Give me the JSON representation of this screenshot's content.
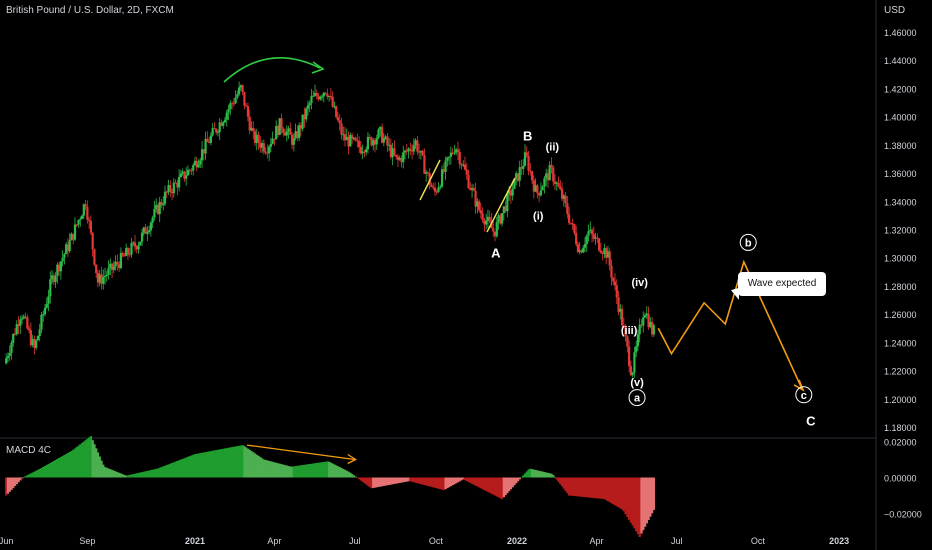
{
  "header": {
    "title": "British Pound / U.S. Dollar, 2D, FXCM",
    "currency": "USD",
    "macd_label": "MACD 4C"
  },
  "colors": {
    "up": "#26a69a",
    "candle_up": "#2ebd4a",
    "candle_down": "#e53935",
    "macd_green": "#1f9d2f",
    "macd_light_green": "#4caf50",
    "macd_red": "#b71c1c",
    "projection": "#f39c12",
    "arc": "#2ecc40",
    "trendline": "#f1e05a"
  },
  "chart_data": [
    {
      "type": "candlestick",
      "title": "British Pound / U.S. Dollar, 2D, FXCM",
      "ylabel": "USD",
      "ylim": [
        1.17,
        1.47
      ],
      "yticks": [
        "1.46000",
        "1.44000",
        "1.42000",
        "1.40000",
        "1.38000",
        "1.36000",
        "1.34000",
        "1.32000",
        "1.30000",
        "1.28000",
        "1.26000",
        "1.24000",
        "1.22000",
        "1.20000",
        "1.18000"
      ],
      "xticks": [
        "Jun",
        "Sep",
        "2021",
        "Apr",
        "Jul",
        "Oct",
        "2022",
        "Apr",
        "Jul",
        "Oct",
        "2023"
      ],
      "price_path": [
        [
          "2020-06-01",
          1.225
        ],
        [
          "2020-06-20",
          1.262
        ],
        [
          "2020-07-05",
          1.235
        ],
        [
          "2020-07-25",
          1.285
        ],
        [
          "2020-08-15",
          1.312
        ],
        [
          "2020-09-01",
          1.34
        ],
        [
          "2020-09-15",
          1.283
        ],
        [
          "2020-10-01",
          1.292
        ],
        [
          "2020-11-01",
          1.312
        ],
        [
          "2020-12-01",
          1.345
        ],
        [
          "2021-01-01",
          1.365
        ],
        [
          "2021-02-24",
          1.42
        ],
        [
          "2021-03-10",
          1.385
        ],
        [
          "2021-03-25",
          1.378
        ],
        [
          "2021-04-10",
          1.395
        ],
        [
          "2021-04-25",
          1.382
        ],
        [
          "2021-05-15",
          1.412
        ],
        [
          "2021-06-01",
          1.42
        ],
        [
          "2021-06-20",
          1.385
        ],
        [
          "2021-07-10",
          1.378
        ],
        [
          "2021-08-01",
          1.388
        ],
        [
          "2021-08-20",
          1.368
        ],
        [
          "2021-09-10",
          1.382
        ],
        [
          "2021-10-01",
          1.345
        ],
        [
          "2021-10-25",
          1.38
        ],
        [
          "2021-11-20",
          1.335
        ],
        [
          "2021-12-08",
          1.318
        ],
        [
          "2022-01-13",
          1.372
        ],
        [
          "2022-01-25",
          1.345
        ],
        [
          "2022-02-10",
          1.362
        ],
        [
          "2022-02-25",
          1.34
        ],
        [
          "2022-03-15",
          1.305
        ],
        [
          "2022-03-25",
          1.318
        ],
        [
          "2022-04-15",
          1.303
        ],
        [
          "2022-05-01",
          1.258
        ],
        [
          "2022-05-13",
          1.218
        ],
        [
          "2022-05-27",
          1.265
        ],
        [
          "2022-06-05",
          1.248
        ]
      ],
      "projection": [
        [
          "2022-06-10",
          1.25
        ],
        [
          "2022-06-25",
          1.232
        ],
        [
          "2022-08-01",
          1.268
        ],
        [
          "2022-08-25",
          1.253
        ],
        [
          "2022-09-15",
          1.297
        ],
        [
          "2022-11-20",
          1.207
        ]
      ],
      "annotations": [
        {
          "text": "A",
          "date": "2021-12-08",
          "price": 1.3
        },
        {
          "text": "B",
          "date": "2022-01-13",
          "price": 1.383
        },
        {
          "text": "(i)",
          "date": "2022-01-25",
          "price": 1.327
        },
        {
          "text": "(ii)",
          "date": "2022-02-10",
          "price": 1.376
        },
        {
          "text": "(iii)",
          "date": "2022-05-08",
          "price": 1.246
        },
        {
          "text": "(iv)",
          "date": "2022-05-20",
          "price": 1.28
        },
        {
          "text": "(v)",
          "date": "2022-05-17",
          "price": 1.209
        },
        {
          "text": "a",
          "date": "2022-05-17",
          "price": 1.198,
          "circled": true
        },
        {
          "text": "b",
          "date": "2022-09-20",
          "price": 1.308,
          "circled": true
        },
        {
          "text": "c",
          "date": "2022-11-22",
          "price": 1.2,
          "circled": true
        },
        {
          "text": "C",
          "date": "2022-11-30",
          "price": 1.181
        }
      ],
      "callout": "Wave expected"
    },
    {
      "type": "histogram",
      "title": "MACD 4C",
      "ylim": [
        -0.034,
        0.024
      ],
      "yticks": [
        "0.02000",
        "0.00000",
        "−0.02000"
      ],
      "macd_path": [
        [
          "2020-06-01",
          -0.01
        ],
        [
          "2020-06-20",
          0.0
        ],
        [
          "2020-07-10",
          0.005
        ],
        [
          "2020-08-15",
          0.015
        ],
        [
          "2020-09-05",
          0.023
        ],
        [
          "2020-09-20",
          0.006
        ],
        [
          "2020-10-15",
          0.001
        ],
        [
          "2020-11-20",
          0.005
        ],
        [
          "2021-01-01",
          0.013
        ],
        [
          "2021-02-24",
          0.018
        ],
        [
          "2021-03-20",
          0.01
        ],
        [
          "2021-04-20",
          0.006
        ],
        [
          "2021-06-01",
          0.009
        ],
        [
          "2021-06-25",
          0.003
        ],
        [
          "2021-07-20",
          -0.006
        ],
        [
          "2021-09-01",
          -0.002
        ],
        [
          "2021-10-10",
          -0.007
        ],
        [
          "2021-11-01",
          -0.001
        ],
        [
          "2021-12-15",
          -0.012
        ],
        [
          "2022-01-15",
          0.005
        ],
        [
          "2022-02-10",
          0.002
        ],
        [
          "2022-03-01",
          -0.01
        ],
        [
          "2022-04-10",
          -0.012
        ],
        [
          "2022-05-01",
          -0.018
        ],
        [
          "2022-05-20",
          -0.033
        ],
        [
          "2022-06-05",
          -0.018
        ]
      ],
      "divergence_line": [
        [
          "2021-03-01",
          0.018
        ],
        [
          "2021-07-01",
          0.01
        ]
      ]
    }
  ]
}
